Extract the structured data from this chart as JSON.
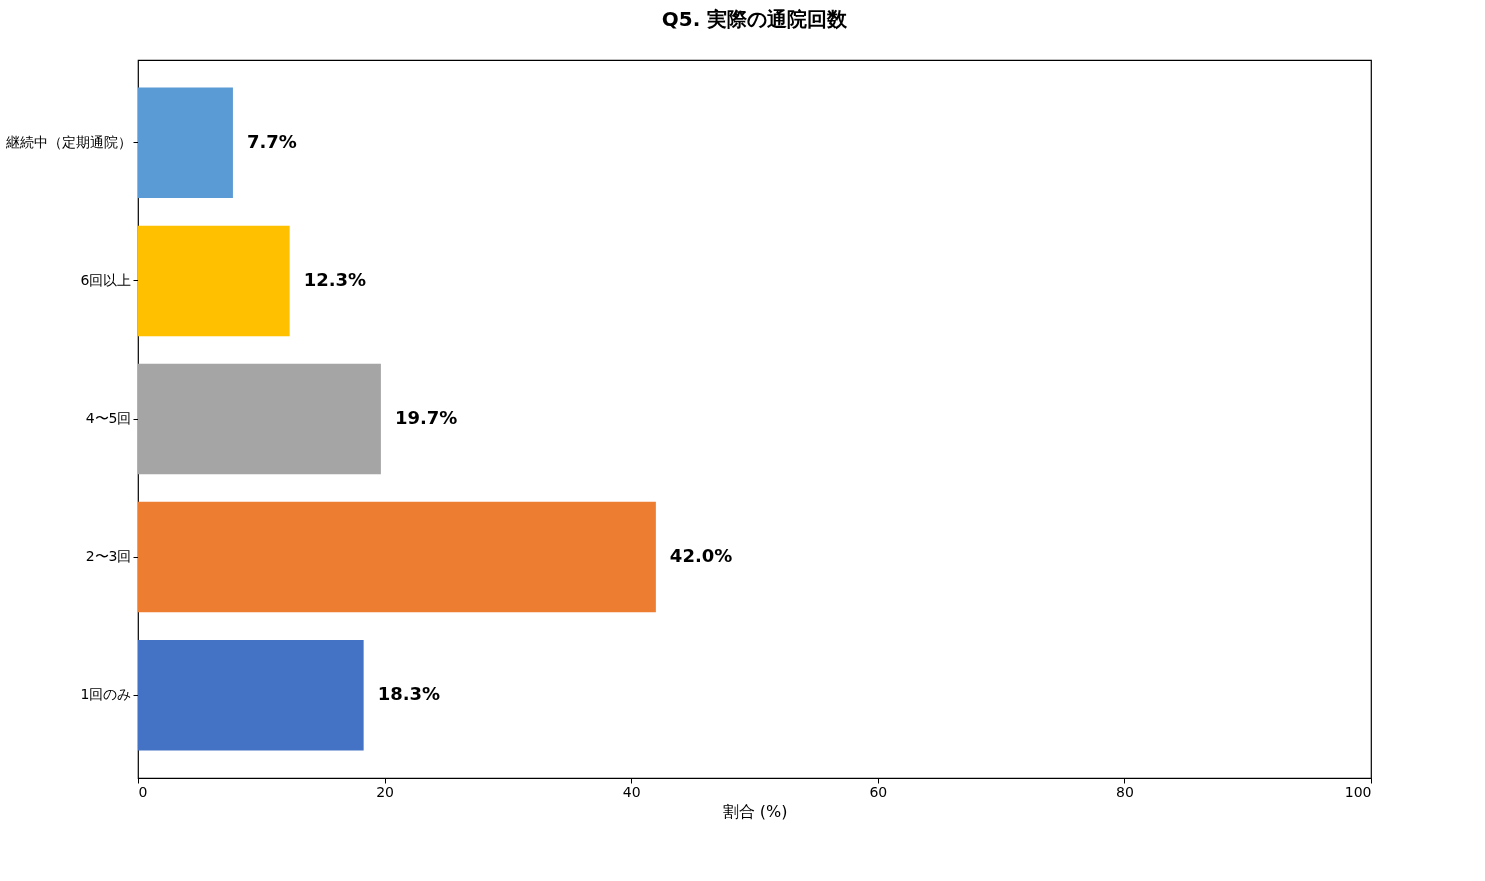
{
  "chart_data": {
    "type": "bar",
    "orientation": "horizontal",
    "title": "Q5. 実際の通院回数",
    "xlabel": "割合 (%)",
    "categories": [
      "継続中（定期通院）",
      "6回以上",
      "4〜5回",
      "2〜3回",
      "1回のみ"
    ],
    "values": [
      7.7,
      12.3,
      19.7,
      42.0,
      18.3
    ],
    "colors": [
      "#5b9bd5",
      "#ffc000",
      "#a5a5a5",
      "#ed7d31",
      "#4472c4"
    ],
    "value_labels": [
      "7.7%",
      "12.3%",
      "19.7%",
      "42.0%",
      "18.3%"
    ],
    "xlim": [
      0,
      100
    ],
    "xticks": [
      0,
      20,
      40,
      60,
      80,
      100
    ]
  }
}
